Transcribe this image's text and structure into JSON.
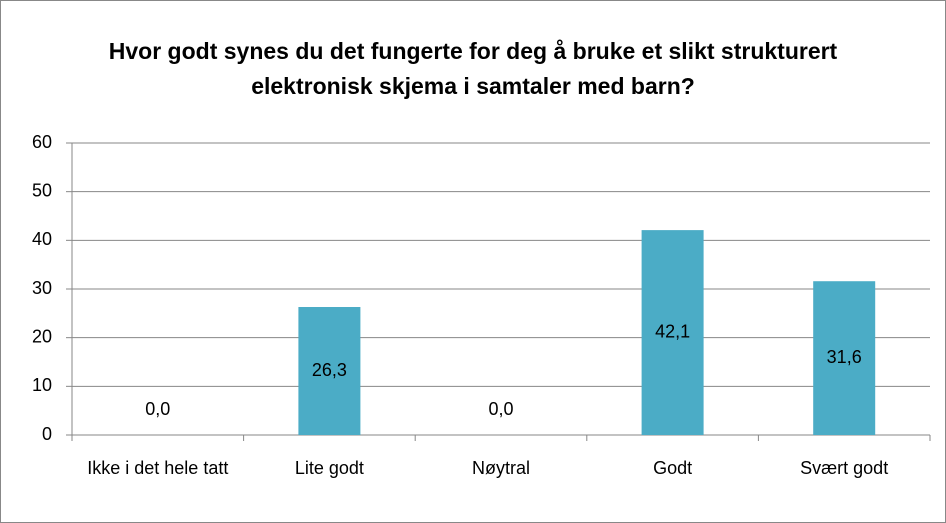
{
  "chart_data": {
    "type": "bar",
    "title": "Hvor godt synes du det fungerte for deg å bruke et slikt strukturert elektronisk skjema i samtaler med barn?",
    "categories": [
      "Ikke i det hele tatt",
      "Lite godt",
      "Nøytral",
      "Godt",
      "Svært godt"
    ],
    "values": [
      0,
      26.3,
      0,
      42.1,
      31.6
    ],
    "value_labels": [
      "0,0",
      "26,3",
      "0,0",
      "42,1",
      "31,6"
    ],
    "color": "#4bacc6",
    "ylim": [
      0,
      60
    ],
    "yticks": [
      0,
      10,
      20,
      30,
      40,
      50,
      60
    ],
    "grid": true
  }
}
